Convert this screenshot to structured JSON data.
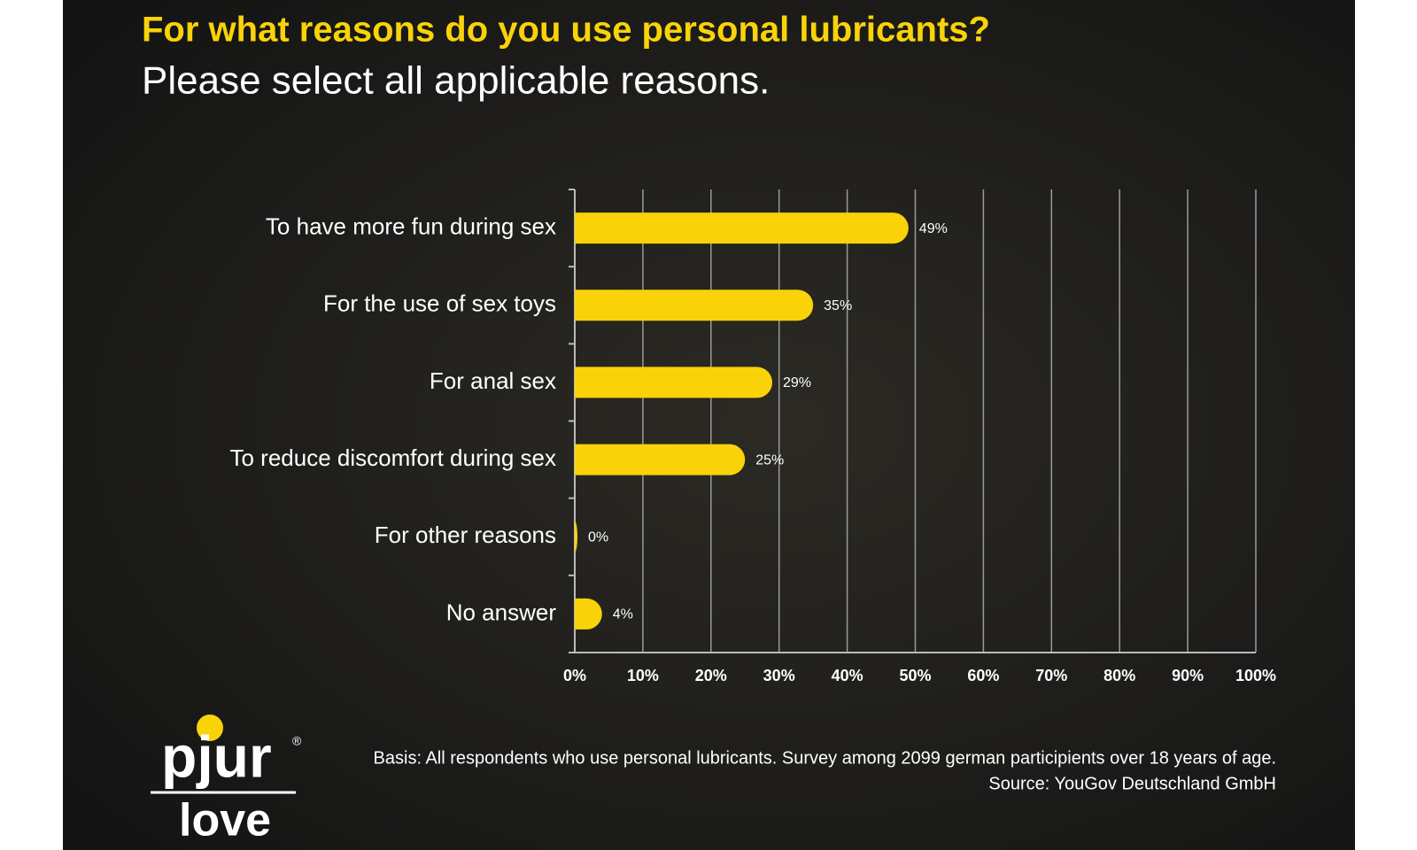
{
  "chart_data": {
    "type": "bar",
    "orientation": "horizontal",
    "title": "For what reasons do you use personal lubricants?",
    "subtitle": "Please select all applicable reasons.",
    "categories": [
      "To have more fun during sex",
      "For the use of sex toys",
      "For anal sex",
      "To reduce discomfort during sex",
      "For other reasons",
      "No answer"
    ],
    "values": [
      49,
      35,
      29,
      25,
      0,
      4
    ],
    "value_labels": [
      "49%",
      "35%",
      "29%",
      "25%",
      "0%",
      "4%"
    ],
    "color": "#f9d308",
    "xlim": [
      0,
      100
    ],
    "xticks": [
      {
        "value": 0,
        "label": "0%"
      },
      {
        "value": 10,
        "label": "10%"
      },
      {
        "value": 20,
        "label": "20%"
      },
      {
        "value": 30,
        "label": "30%"
      },
      {
        "value": 40,
        "label": "40%"
      },
      {
        "value": 50,
        "label": "50%"
      },
      {
        "value": 60,
        "label": "60%"
      },
      {
        "value": 70,
        "label": "70%"
      },
      {
        "value": 80,
        "label": "80%"
      },
      {
        "value": 90,
        "label": "90%"
      },
      {
        "value": 100,
        "label": "100%"
      }
    ],
    "grid": true,
    "footnote": [
      "Basis: All respondents who use personal lubricants. Survey among 2099 german participients over 18 years of age.",
      "Source: YouGov Deutschland GmbH"
    ],
    "logo": {
      "brand": "pjur",
      "mark": "®",
      "line": "love"
    }
  }
}
